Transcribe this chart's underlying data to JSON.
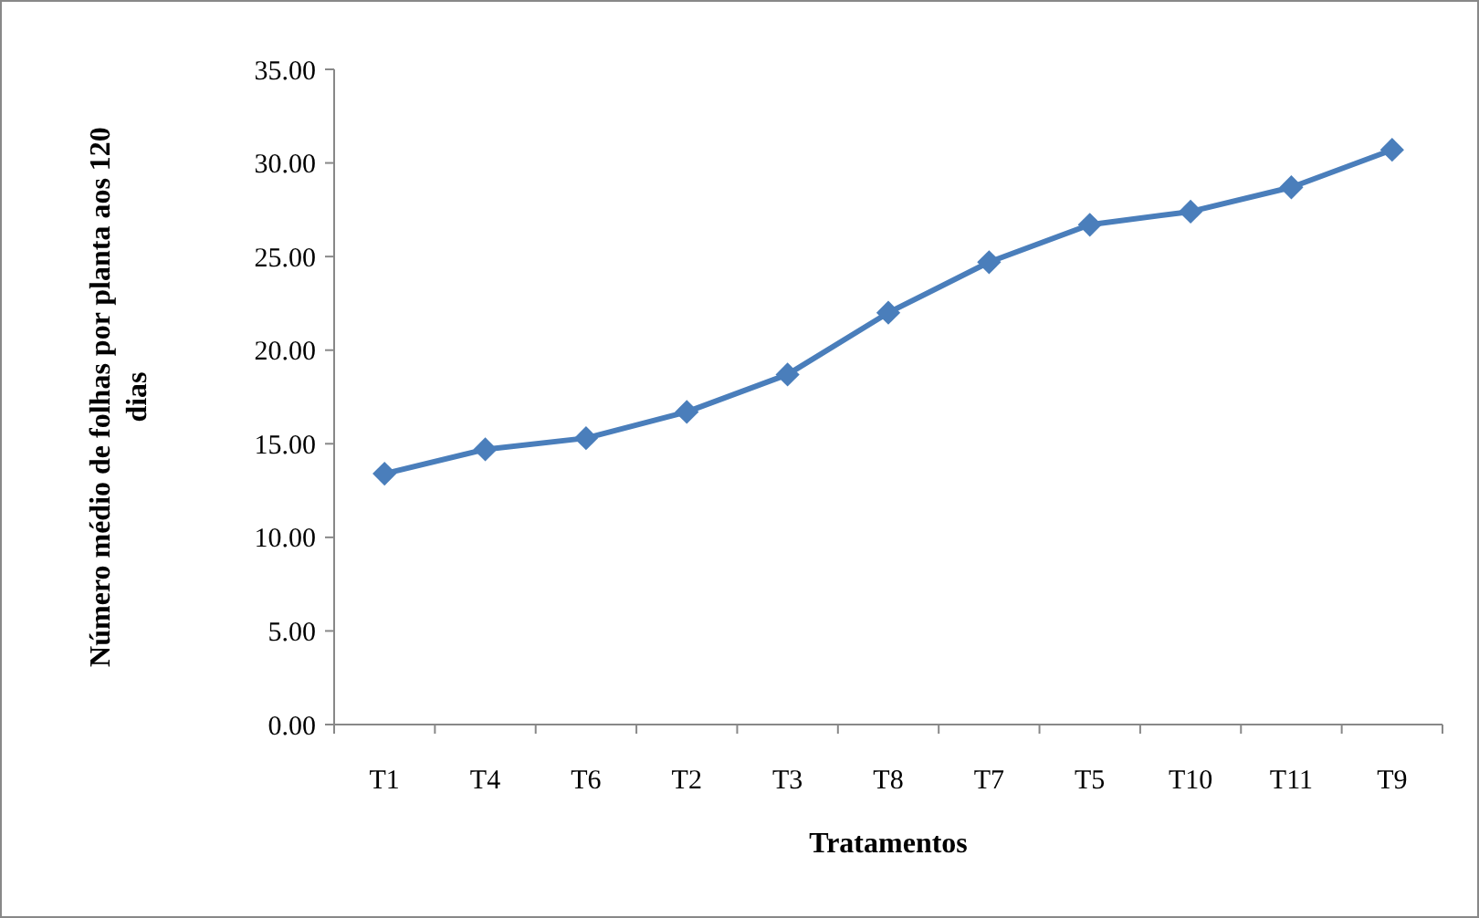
{
  "chart_data": {
    "type": "line",
    "xlabel": "Tratamentos",
    "ylabel": "Número médio de folhas por planta aos 120 dias",
    "categories": [
      "T1",
      "T4",
      "T6",
      "T2",
      "T3",
      "T8",
      "T7",
      "T5",
      "T10",
      "T11",
      "T9"
    ],
    "series": [
      {
        "color": "#4a7ebb",
        "values": [
          13.4,
          14.7,
          15.3,
          16.7,
          18.7,
          22.0,
          24.7,
          26.7,
          27.4,
          28.7,
          30.7
        ]
      }
    ],
    "ylim": [
      0,
      35
    ],
    "yticks": [
      {
        "value": 0,
        "label": "0.00"
      },
      {
        "value": 5,
        "label": "5.00"
      },
      {
        "value": 10,
        "label": "10.00"
      },
      {
        "value": 15,
        "label": "15.00"
      },
      {
        "value": 20,
        "label": "20.00"
      },
      {
        "value": 25,
        "label": "25.00"
      },
      {
        "value": 30,
        "label": "30.00"
      },
      {
        "value": 35,
        "label": "35.00"
      }
    ],
    "grid": false,
    "marker": "diamond",
    "line_style": "solid"
  }
}
